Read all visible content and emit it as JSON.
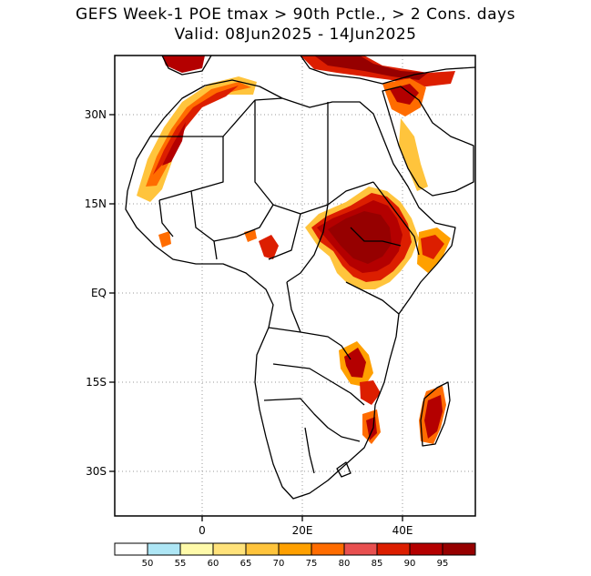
{
  "title": {
    "line1": "GEFS Week-1 POE tmax > 90th Pctle., > 2 Cons. days",
    "line2": "Valid: 08Jun2025 - 14Jun2025"
  },
  "axes": {
    "lat_ticks": [
      "30N",
      "15N",
      "EQ",
      "15S",
      "30S"
    ],
    "lon_ticks": [
      "0",
      "20E",
      "40E"
    ]
  },
  "colorbar": {
    "colors": [
      "#ffffff",
      "#aee6f5",
      "#fffaaa",
      "#ffe27a",
      "#ffc43c",
      "#ffa000",
      "#ff6c00",
      "#e85050",
      "#dc1e00",
      "#b40000",
      "#960000"
    ],
    "labels": [
      "50",
      "55",
      "60",
      "65",
      "70",
      "75",
      "80",
      "85",
      "90",
      "95"
    ]
  }
}
